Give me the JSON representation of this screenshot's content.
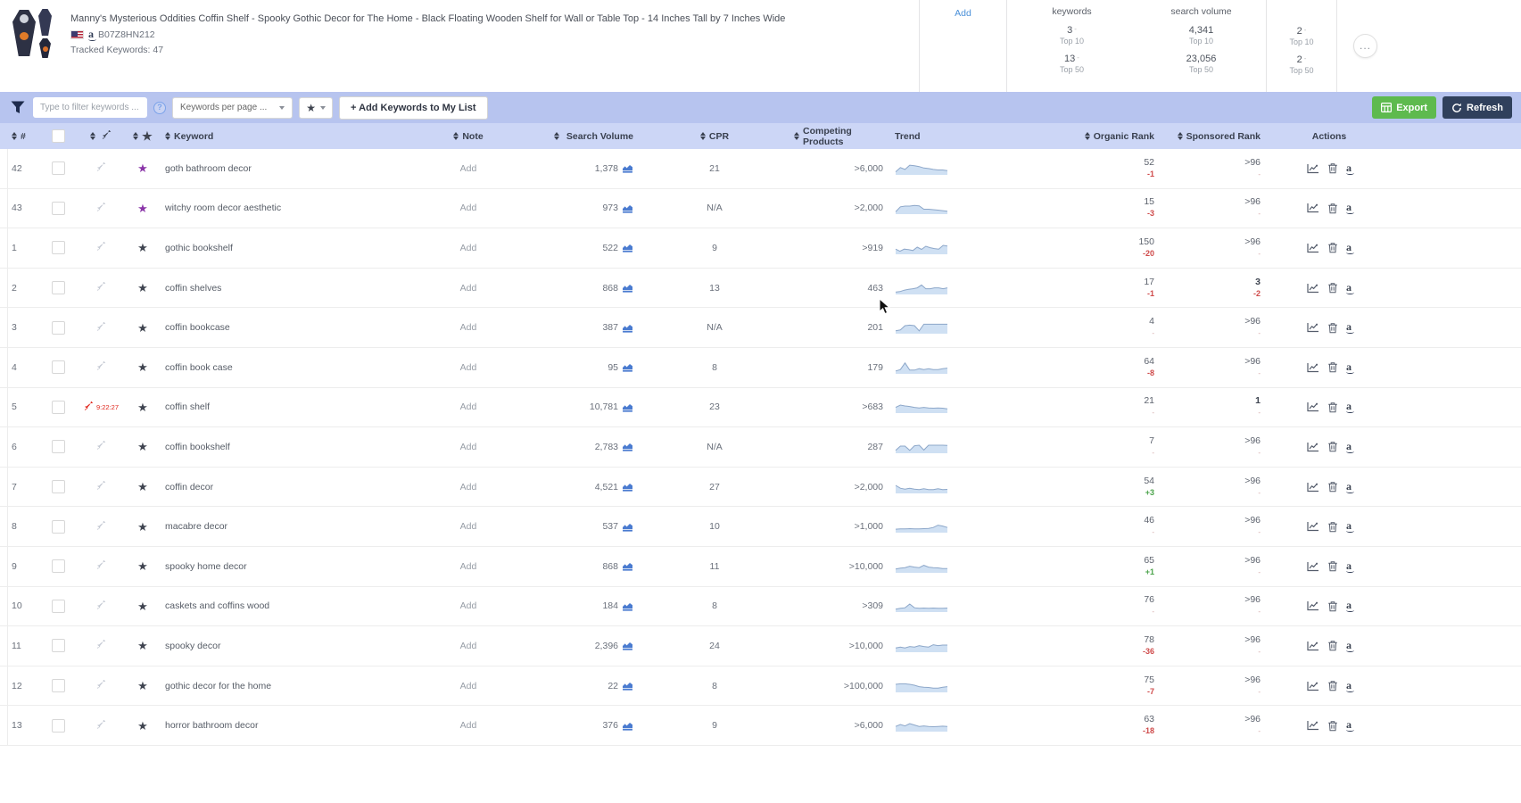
{
  "product": {
    "title": "Manny's Mysterious Oddities Coffin Shelf - Spooky Gothic Decor for The Home - Black Floating Wooden Shelf for Wall or Table Top - 14 Inches Tall by 7 Inches Wide",
    "asin": "B07Z8HN212",
    "tracked_keywords": "Tracked Keywords: 47"
  },
  "summary": {
    "add_label": "Add",
    "dash": "-",
    "more_label": "...",
    "keywords": {
      "header": "keywords",
      "top10": "3",
      "top10_label": "Top 10",
      "top50": "13",
      "top50_label": "Top 50"
    },
    "search_volume": {
      "header": "search volume",
      "top10": "4,341",
      "top10_label": "Top 10",
      "top50": "23,056",
      "top50_label": "Top 50"
    },
    "rank_summary": {
      "top10": "2",
      "top10_label": "Top 10",
      "top50": "2",
      "top50_label": "Top 50"
    }
  },
  "toolbar": {
    "filter_placeholder": "Type to filter keywords ...",
    "keywords_per_page_label": "Keywords per page ...",
    "add_keywords_button": "+ Add Keywords to My List",
    "export_button": "Export",
    "refresh_button": "Refresh"
  },
  "table": {
    "headers": {
      "num": "#",
      "keyword": "Keyword",
      "note": "Note",
      "search_volume": "Search Volume",
      "cpr": "CPR",
      "competing": "Competing Products",
      "trend": "Trend",
      "organic": "Organic Rank",
      "sponsored": "Sponsored Rank",
      "actions": "Actions"
    },
    "rows": [
      {
        "num": "42",
        "rocket": "gray",
        "star": "purple",
        "keyword": "goth bathroom decor",
        "note": "Add",
        "sv": "1,378",
        "cpr": "21",
        "competing": ">6,000",
        "trend": [
          1.5,
          4.5,
          3.2,
          6.2,
          5.8,
          5.2,
          4.2,
          3.8,
          3.2,
          2.8,
          2.8,
          2.4
        ],
        "organic": "52",
        "odelta": "-1",
        "odc": "neg",
        "sponsored": ">96",
        "sdelta": "-",
        "sdc": "none"
      },
      {
        "num": "43",
        "rocket": "gray",
        "star": "purple",
        "keyword": "witchy room decor aesthetic",
        "note": "Add",
        "sv": "973",
        "cpr": "N/A",
        "competing": ">2,000",
        "trend": [
          1,
          4.5,
          5,
          5,
          5.5,
          5.2,
          2.8,
          2.8,
          2.5,
          2.2,
          1.8,
          1.4
        ],
        "organic": "15",
        "odelta": "-3",
        "odc": "neg",
        "sponsored": ">96",
        "sdelta": "-",
        "sdc": "none"
      },
      {
        "num": "1",
        "rocket": "gray",
        "star": "dark",
        "keyword": "gothic bookshelf",
        "note": "Add",
        "sv": "522",
        "cpr": "9",
        "competing": ">919",
        "trend": [
          3,
          1.5,
          3,
          2.6,
          2,
          4.4,
          2.8,
          5,
          4,
          3.4,
          3,
          5.6,
          5.2
        ],
        "organic": "150",
        "odelta": "-20",
        "odc": "neg",
        "sponsored": ">96",
        "sdelta": "-",
        "sdc": "none"
      },
      {
        "num": "2",
        "rocket": "gray",
        "star": "dark",
        "keyword": "coffin shelves",
        "note": "Add",
        "sv": "868",
        "cpr": "13",
        "competing": "463",
        "trend": [
          1,
          1.4,
          2.4,
          3,
          3.4,
          4,
          6,
          3.4,
          3.4,
          4,
          4,
          3.4,
          4
        ],
        "organic": "17",
        "odelta": "-1",
        "odc": "neg",
        "sponsored": "3",
        "sdelta": "-2",
        "sdc": "neg"
      },
      {
        "num": "3",
        "rocket": "gray",
        "star": "dark",
        "keyword": "coffin bookcase",
        "note": "Add",
        "sv": "387",
        "cpr": "N/A",
        "competing": "201",
        "trend": [
          1.4,
          2,
          5,
          5.4,
          5,
          1.4,
          6,
          6,
          6,
          6,
          6,
          6
        ],
        "organic": "4",
        "odelta": "-",
        "odc": "none",
        "sponsored": ">96",
        "sdelta": "-",
        "sdc": "none"
      },
      {
        "num": "4",
        "rocket": "gray",
        "star": "dark",
        "keyword": "coffin book case",
        "note": "Add",
        "sv": "95",
        "cpr": "8",
        "competing": "179",
        "trend": [
          1.4,
          2.4,
          7,
          2,
          2,
          3,
          2.4,
          3,
          2.4,
          2.4,
          3,
          3.4
        ],
        "organic": "64",
        "odelta": "-8",
        "odc": "neg",
        "sponsored": ">96",
        "sdelta": "-",
        "sdc": "none"
      },
      {
        "num": "5",
        "rocket": "red",
        "rocket_badge": "9:22:27",
        "star": "dark",
        "keyword": "coffin shelf",
        "note": "Add",
        "sv": "10,781",
        "cpr": "23",
        "competing": ">683",
        "trend": [
          3.4,
          5,
          4.4,
          4,
          3.4,
          3,
          3.4,
          3,
          2.8,
          3,
          2.8,
          2.4
        ],
        "organic": "21",
        "odelta": "-",
        "odc": "none",
        "sponsored": "1",
        "sdelta": "-",
        "sdc": "none"
      },
      {
        "num": "6",
        "rocket": "gray",
        "star": "dark",
        "keyword": "coffin bookshelf",
        "note": "Add",
        "sv": "2,783",
        "cpr": "N/A",
        "competing": "287",
        "trend": [
          1.4,
          4.4,
          4.4,
          1.4,
          4.6,
          5,
          1.6,
          5,
          5,
          5,
          5,
          4.8
        ],
        "organic": "7",
        "odelta": "-",
        "odc": "none",
        "sponsored": ">96",
        "sdelta": "-",
        "sdc": "none"
      },
      {
        "num": "7",
        "rocket": "gray",
        "star": "dark",
        "keyword": "coffin decor",
        "note": "Add",
        "sv": "4,521",
        "cpr": "27",
        "competing": ">2,000",
        "trend": [
          5,
          3,
          2.4,
          3,
          2.4,
          2,
          2.6,
          2,
          2,
          2.6,
          2,
          2.2
        ],
        "organic": "54",
        "odelta": "+3",
        "odc": "pos",
        "sponsored": ">96",
        "sdelta": "-",
        "sdc": "none"
      },
      {
        "num": "8",
        "rocket": "gray",
        "star": "dark",
        "keyword": "macabre decor",
        "note": "Add",
        "sv": "537",
        "cpr": "10",
        "competing": ">1,000",
        "trend": [
          1.8,
          2,
          2,
          2.2,
          2,
          2,
          2.2,
          2.4,
          3,
          4.6,
          4,
          3
        ],
        "organic": "46",
        "odelta": "-",
        "odc": "none",
        "sponsored": ">96",
        "sdelta": "-",
        "sdc": "none"
      },
      {
        "num": "9",
        "rocket": "gray",
        "star": "dark",
        "keyword": "spooky home decor",
        "note": "Add",
        "sv": "868",
        "cpr": "11",
        "competing": ">10,000",
        "trend": [
          2,
          2.6,
          3,
          4,
          3.4,
          3,
          4.6,
          3.4,
          3,
          2.8,
          2.4,
          2.4
        ],
        "organic": "65",
        "odelta": "+1",
        "odc": "pos",
        "sponsored": ">96",
        "sdelta": "-",
        "sdc": "none"
      },
      {
        "num": "10",
        "rocket": "gray",
        "star": "dark",
        "keyword": "caskets and coffins wood",
        "note": "Add",
        "sv": "184",
        "cpr": "8",
        "competing": ">309",
        "trend": [
          1.4,
          2,
          2.4,
          5,
          2.4,
          2,
          2.2,
          2,
          2.2,
          2,
          2,
          2.2
        ],
        "organic": "76",
        "odelta": "-",
        "odc": "none",
        "sponsored": ">96",
        "sdelta": "-",
        "sdc": "none"
      },
      {
        "num": "11",
        "rocket": "gray",
        "star": "dark",
        "keyword": "spooky decor",
        "note": "Add",
        "sv": "2,396",
        "cpr": "24",
        "competing": ">10,000",
        "trend": [
          2.4,
          3,
          2.4,
          3.4,
          3,
          4,
          3.4,
          3,
          4.6,
          4,
          4.4,
          4.4
        ],
        "organic": "78",
        "odelta": "-36",
        "odc": "neg",
        "sponsored": ">96",
        "sdelta": "-",
        "sdc": "none"
      },
      {
        "num": "12",
        "rocket": "gray",
        "star": "dark",
        "keyword": "gothic decor for the home",
        "note": "Add",
        "sv": "22",
        "cpr": "8",
        "competing": ">100,000",
        "trend": [
          5,
          5.4,
          5.4,
          5,
          4.4,
          3.4,
          3,
          2.8,
          2.4,
          2.4,
          3,
          3.4
        ],
        "organic": "75",
        "odelta": "-7",
        "odc": "neg",
        "sponsored": ">96",
        "sdelta": "-",
        "sdc": "none"
      },
      {
        "num": "13",
        "rocket": "gray",
        "star": "dark",
        "keyword": "horror bathroom decor",
        "note": "Add",
        "sv": "376",
        "cpr": "9",
        "competing": ">6,000",
        "trend": [
          3,
          4.4,
          3.4,
          5,
          4,
          3,
          3.4,
          3,
          2.8,
          3,
          3.2,
          3
        ],
        "organic": "63",
        "odelta": "-18",
        "odc": "neg",
        "sponsored": ">96",
        "sdelta": "-",
        "sdc": "none"
      }
    ]
  },
  "colors": {
    "toolbar_bg": "#b7c4ef",
    "table_header_bg": "#ccd6f6",
    "export_green": "#5eba4e",
    "refresh_navy": "#30405c",
    "star_purple": "#8a35a8",
    "rocket_red": "#e0251b",
    "delta_red": "#cf4a4a",
    "delta_green": "#4aa34a",
    "link_blue": "#4a90d9",
    "spark_fill": "#cfe0f3",
    "spark_line": "#8da7c9"
  }
}
